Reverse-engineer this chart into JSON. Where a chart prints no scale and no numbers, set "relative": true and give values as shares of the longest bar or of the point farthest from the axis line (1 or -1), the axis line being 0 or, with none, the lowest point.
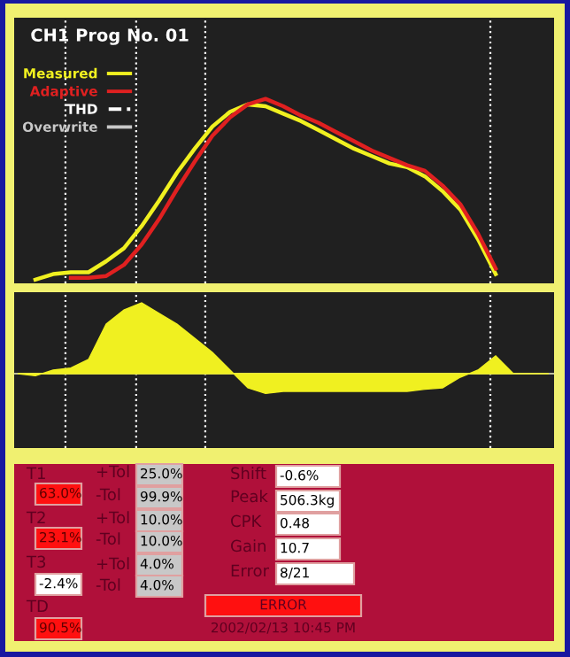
{
  "chart_data": [
    {
      "type": "line",
      "title": "CH1 Prog No. 01",
      "relative": true,
      "legend": "top left",
      "categories": [
        null,
        null,
        null,
        null,
        null,
        null,
        null,
        null,
        null,
        null,
        null,
        null,
        null,
        null,
        null,
        null,
        null,
        null,
        null,
        null,
        null,
        null,
        null,
        null,
        null,
        null,
        null,
        null,
        null,
        null,
        null
      ],
      "series": [
        {
          "name": "Measured",
          "color": "#f0f020",
          "values": [
            null,
            0.02,
            0.05,
            0.06,
            0.06,
            0.12,
            0.19,
            0.31,
            0.45,
            0.6,
            0.73,
            0.85,
            0.93,
            0.97,
            0.96,
            0.92,
            0.88,
            0.83,
            0.78,
            0.73,
            0.69,
            0.65,
            0.63,
            0.58,
            0.5,
            0.4,
            0.24,
            0.05,
            null,
            null,
            null
          ]
        },
        {
          "name": "Adaptive",
          "color": "#e02020",
          "values": [
            null,
            null,
            null,
            0.03,
            0.03,
            0.04,
            0.1,
            0.21,
            0.35,
            0.51,
            0.66,
            0.8,
            0.9,
            0.97,
            1.0,
            0.96,
            0.91,
            0.87,
            0.82,
            0.77,
            0.72,
            0.68,
            0.64,
            0.61,
            0.53,
            0.43,
            0.27,
            0.08,
            null,
            null,
            null
          ]
        },
        {
          "name": "THD",
          "color": "#ffffff",
          "line_style": "dashed",
          "values": [
            null,
            null,
            null,
            null,
            null,
            null,
            null,
            null,
            null,
            null,
            null,
            null,
            null,
            null,
            null,
            null,
            null,
            null,
            null,
            null,
            null,
            null,
            null,
            null,
            null,
            null,
            null,
            null,
            null,
            null,
            null
          ]
        },
        {
          "name": "Overwrite",
          "color": "#c8c8c8",
          "values": [
            null,
            null,
            null,
            null,
            null,
            null,
            null,
            null,
            null,
            null,
            null,
            null,
            null,
            null,
            null,
            null,
            null,
            null,
            null,
            null,
            null,
            null,
            null,
            null,
            null,
            null,
            null,
            null,
            null,
            null,
            null
          ]
        }
      ]
    },
    {
      "type": "area",
      "relative": true,
      "categories": [
        null,
        null,
        null,
        null,
        null,
        null,
        null,
        null,
        null,
        null,
        null,
        null,
        null,
        null,
        null,
        null,
        null,
        null,
        null,
        null,
        null,
        null,
        null,
        null,
        null,
        null,
        null,
        null,
        null,
        null,
        null
      ],
      "series": [
        {
          "color": "#f0f020",
          "values": [
            0,
            -0.03,
            0.05,
            0.08,
            0.2,
            0.7,
            0.9,
            1.0,
            0.85,
            0.7,
            0.5,
            0.3,
            0.05,
            -0.2,
            -0.28,
            -0.25,
            -0.25,
            -0.25,
            -0.25,
            -0.25,
            -0.25,
            -0.25,
            -0.25,
            -0.22,
            -0.2,
            -0.05,
            0.05,
            0.25,
            0,
            0,
            0
          ]
        }
      ]
    },
    {
      "type": "other",
      "annotations": [
        "T1",
        "63.0%",
        "+Tol",
        "25.0%",
        "-Tol",
        "99.9%",
        "T2",
        "23.1%",
        "+Tol",
        "10.0%",
        "-Tol",
        "10.0%",
        "T3",
        "-2.4%",
        "+Tol",
        "4.0%",
        "-Tol",
        "4.0%",
        "TD",
        "90.5%",
        "Shift",
        "-0.6%",
        "Peak",
        "506.3kg",
        "CPK",
        "0.48",
        "Gain",
        "10.7",
        "Error",
        "8/21",
        "ERROR",
        "2002/02/13 10:45 PM"
      ]
    }
  ]
}
